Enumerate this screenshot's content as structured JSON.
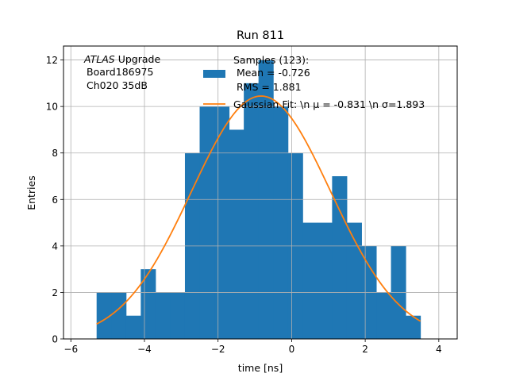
{
  "chart_data": {
    "type": "bar",
    "title": "Run 811",
    "xlabel": "time [ns]",
    "ylabel": "Entries",
    "xlim": [
      -6.2,
      4.5
    ],
    "ylim": [
      0,
      12.6
    ],
    "xticks": [
      -6,
      -4,
      -2,
      0,
      2,
      4
    ],
    "xtick_labels": [
      "−6",
      "−4",
      "−2",
      "0",
      "2",
      "4"
    ],
    "yticks": [
      0,
      2,
      4,
      6,
      8,
      10,
      12
    ],
    "ytick_labels": [
      "0",
      "2",
      "4",
      "6",
      "8",
      "10",
      "12"
    ],
    "grid": true,
    "legend_position": "top-center",
    "annotation": {
      "atlas": "ATLAS",
      "upgrade": " Upgrade",
      "board": "Board186975",
      "channel": "Ch020 35dB"
    },
    "histogram": {
      "name": "Samples (123):",
      "stat_mean": " Mean = -0.726",
      "stat_rms": " RMS = 1.881",
      "color": "#1f77b4",
      "bin_edges": [
        -5.3,
        -4.9,
        -4.5,
        -4.1,
        -3.7,
        -3.3,
        -2.9,
        -2.5,
        -2.1,
        -1.7,
        -1.3,
        -0.9,
        -0.5,
        -0.1,
        0.3,
        0.7,
        1.1,
        1.5,
        1.9,
        2.3,
        2.7,
        3.1,
        3.5
      ],
      "counts": [
        2,
        2,
        1,
        3,
        2,
        2,
        8,
        10,
        10,
        9,
        11,
        12,
        10,
        8,
        5,
        5,
        7,
        5,
        4,
        2,
        4,
        1
      ]
    },
    "fit": {
      "name": "Gaussian Fit: \\n μ = -0.831 \\n σ=1.893",
      "color": "#ff7f0e",
      "mu": -0.831,
      "sigma": 1.893,
      "amplitude": 10.45,
      "x_range": [
        -5.3,
        3.5
      ]
    }
  }
}
